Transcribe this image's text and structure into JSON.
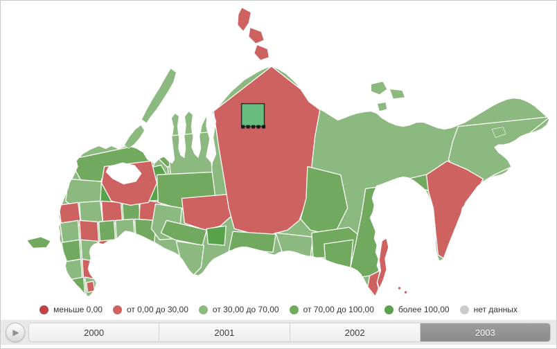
{
  "legend": {
    "items": [
      {
        "label": "меньше 0,00",
        "color": "#c2404a"
      },
      {
        "label": "от 0,00 до 30,00",
        "color": "#cd6261"
      },
      {
        "label": "от 30,00 до 70,00",
        "color": "#8cb97f"
      },
      {
        "label": "от 70,00 до 100,00",
        "color": "#71a95f"
      },
      {
        "label": "более 100,00",
        "color": "#57a24a"
      },
      {
        "label": "нет данных",
        "color": "#cbcbcb"
      }
    ]
  },
  "timeline": {
    "play_icon": "▶",
    "years": [
      {
        "label": "2000",
        "selected": false
      },
      {
        "label": "2001",
        "selected": false
      },
      {
        "label": "2002",
        "selected": false
      },
      {
        "label": "2003",
        "selected": true
      }
    ]
  },
  "map": {
    "palette": {
      "lt0": "#c2404a",
      "r0_30": "#cd6261",
      "g30_70": "#8cb97f",
      "g70_100": "#71a95f",
      "gt100": "#57a24a",
      "nodata": "#cbcbcb",
      "sea": "#ffffff"
    },
    "marker": {
      "fill": "#67bd7e",
      "border": "#2b2b2b",
      "handle_color": "#1a1a1a"
    },
    "regions": [
      {
        "id": "russia-base",
        "category": "g30_70"
      },
      {
        "id": "white-sea",
        "category": "sea"
      },
      {
        "id": "yenisei-gulf",
        "category": "sea"
      },
      {
        "id": "murmansk",
        "category": "g70_100"
      },
      {
        "id": "karelia",
        "category": "g30_70"
      },
      {
        "id": "arkhangelsk",
        "category": "gt100"
      },
      {
        "id": "nenets",
        "category": "g70_100"
      },
      {
        "id": "komi",
        "category": "g30_70"
      },
      {
        "id": "cell-a1",
        "category": "r0_30"
      },
      {
        "id": "cell-a2",
        "category": "g30_70"
      },
      {
        "id": "cell-a3",
        "category": "r0_30"
      },
      {
        "id": "cell-a4",
        "category": "g70_100"
      },
      {
        "id": "cell-a5",
        "category": "r0_30"
      },
      {
        "id": "cell-b1",
        "category": "g30_70"
      },
      {
        "id": "cell-b2",
        "category": "r0_30"
      },
      {
        "id": "cell-b3",
        "category": "g70_100"
      },
      {
        "id": "cell-b4",
        "category": "g30_70"
      },
      {
        "id": "cell-b5",
        "category": "g70_100"
      },
      {
        "id": "cell-c1",
        "category": "g70_100"
      },
      {
        "id": "cell-c2",
        "category": "g30_70"
      },
      {
        "id": "cell-c3",
        "category": "r0_30"
      },
      {
        "id": "cell-d1",
        "category": "g30_70"
      },
      {
        "id": "cell-d2",
        "category": "r0_30"
      },
      {
        "id": "cell-e1",
        "category": "g70_100"
      },
      {
        "id": "cell-e2",
        "category": "g30_70"
      },
      {
        "id": "cell-e3",
        "category": "r0_30"
      },
      {
        "id": "sverdlovsk",
        "category": "r0_30"
      },
      {
        "id": "yamal",
        "category": "g30_70"
      },
      {
        "id": "khanty",
        "category": "g70_100"
      },
      {
        "id": "omsk",
        "category": "g30_70"
      },
      {
        "id": "tomsk",
        "category": "r0_30"
      },
      {
        "id": "novosibirsk",
        "category": "g70_100"
      },
      {
        "id": "kemerovo",
        "category": "gt100"
      },
      {
        "id": "altai",
        "category": "g30_70"
      },
      {
        "id": "krasnoyarsk",
        "category": "r0_30"
      },
      {
        "id": "tuva",
        "category": "g70_100"
      },
      {
        "id": "irkutsk",
        "category": "g70_100"
      },
      {
        "id": "buryatia",
        "category": "g30_70"
      },
      {
        "id": "chita",
        "category": "g70_100"
      },
      {
        "id": "amur",
        "category": "g70_100"
      },
      {
        "id": "khabarovsk",
        "category": "g70_100"
      },
      {
        "id": "magadan",
        "category": "g70_100"
      },
      {
        "id": "chukotka",
        "category": "g30_70"
      },
      {
        "id": "kamchatka",
        "category": "r0_30"
      },
      {
        "id": "primorye",
        "category": "r0_30"
      },
      {
        "id": "novaya-zemlya-north",
        "category": "g30_70"
      },
      {
        "id": "novaya-zemlya-south",
        "category": "g30_70"
      },
      {
        "id": "severnaya-zemlya-1",
        "category": "r0_30"
      },
      {
        "id": "severnaya-zemlya-2",
        "category": "r0_30"
      },
      {
        "id": "severnaya-zemlya-3",
        "category": "r0_30"
      },
      {
        "id": "new-siberian-1",
        "category": "g30_70"
      },
      {
        "id": "new-siberian-2",
        "category": "g30_70"
      },
      {
        "id": "new-siberian-3",
        "category": "g30_70"
      },
      {
        "id": "wrangel",
        "category": "g30_70"
      },
      {
        "id": "kaliningrad",
        "category": "g70_100"
      },
      {
        "id": "sakhalin",
        "category": "r0_30"
      },
      {
        "id": "kuril-1",
        "category": "r0_30"
      },
      {
        "id": "kuril-2",
        "category": "r0_30"
      }
    ]
  }
}
